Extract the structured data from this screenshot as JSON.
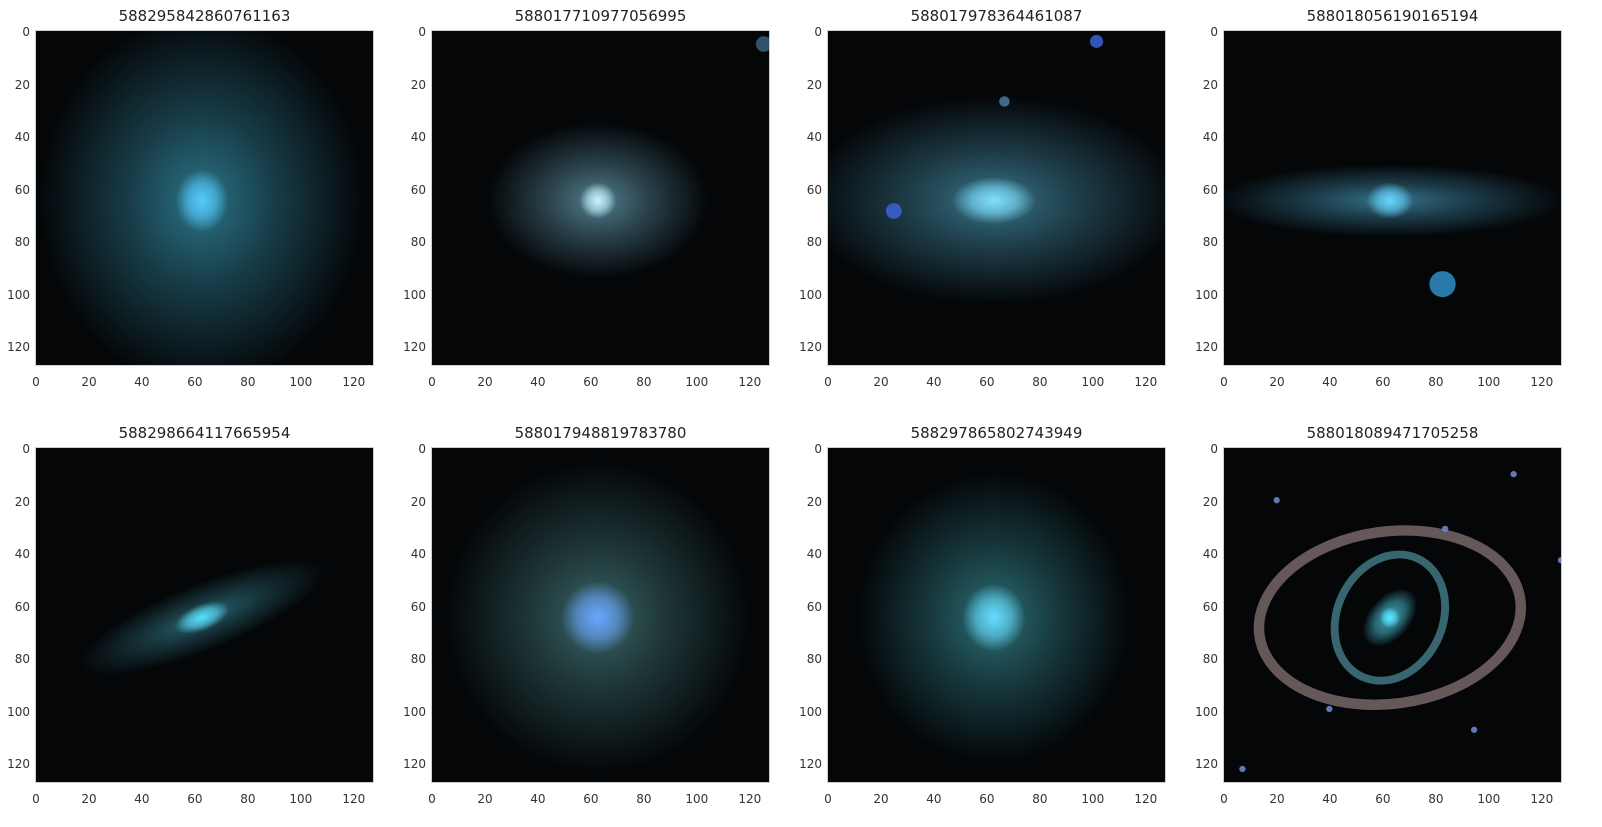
{
  "figure": {
    "x_ticks": [
      "0",
      "20",
      "40",
      "60",
      "80",
      "100",
      "120"
    ],
    "y_ticks": [
      "0",
      "20",
      "40",
      "60",
      "80",
      "100",
      "120"
    ],
    "panels": [
      {
        "title": "588295842860761163",
        "shape": "round-elliptical",
        "core_color": "#55ccff",
        "halo_color": "#2f7f95"
      },
      {
        "title": "588017710977056995",
        "shape": "elliptical",
        "core_color": "#c6f4ff",
        "halo_color": "#5a8c9e"
      },
      {
        "title": "588017978364461087",
        "shape": "wide-elliptical",
        "core_color": "#7fe0ff",
        "halo_color": "#3d7f96"
      },
      {
        "title": "588018056190165194",
        "shape": "edge-on-disk",
        "core_color": "#66d4ff",
        "halo_color": "#3a7f9a"
      },
      {
        "title": "588298664117665954",
        "shape": "inclined-disk",
        "core_color": "#5ae0ff",
        "halo_color": "#2e6e7a"
      },
      {
        "title": "588017948819783780",
        "shape": "diffuse-round",
        "core_color": "#6aa6ff",
        "halo_color": "#3e6f70"
      },
      {
        "title": "588297865802743949",
        "shape": "round",
        "core_color": "#66ddff",
        "halo_color": "#2f7a82"
      },
      {
        "title": "588018089471705258",
        "shape": "ringed-spiral",
        "core_color": "#58e6ff",
        "halo_color": "#b89a9a"
      }
    ]
  }
}
